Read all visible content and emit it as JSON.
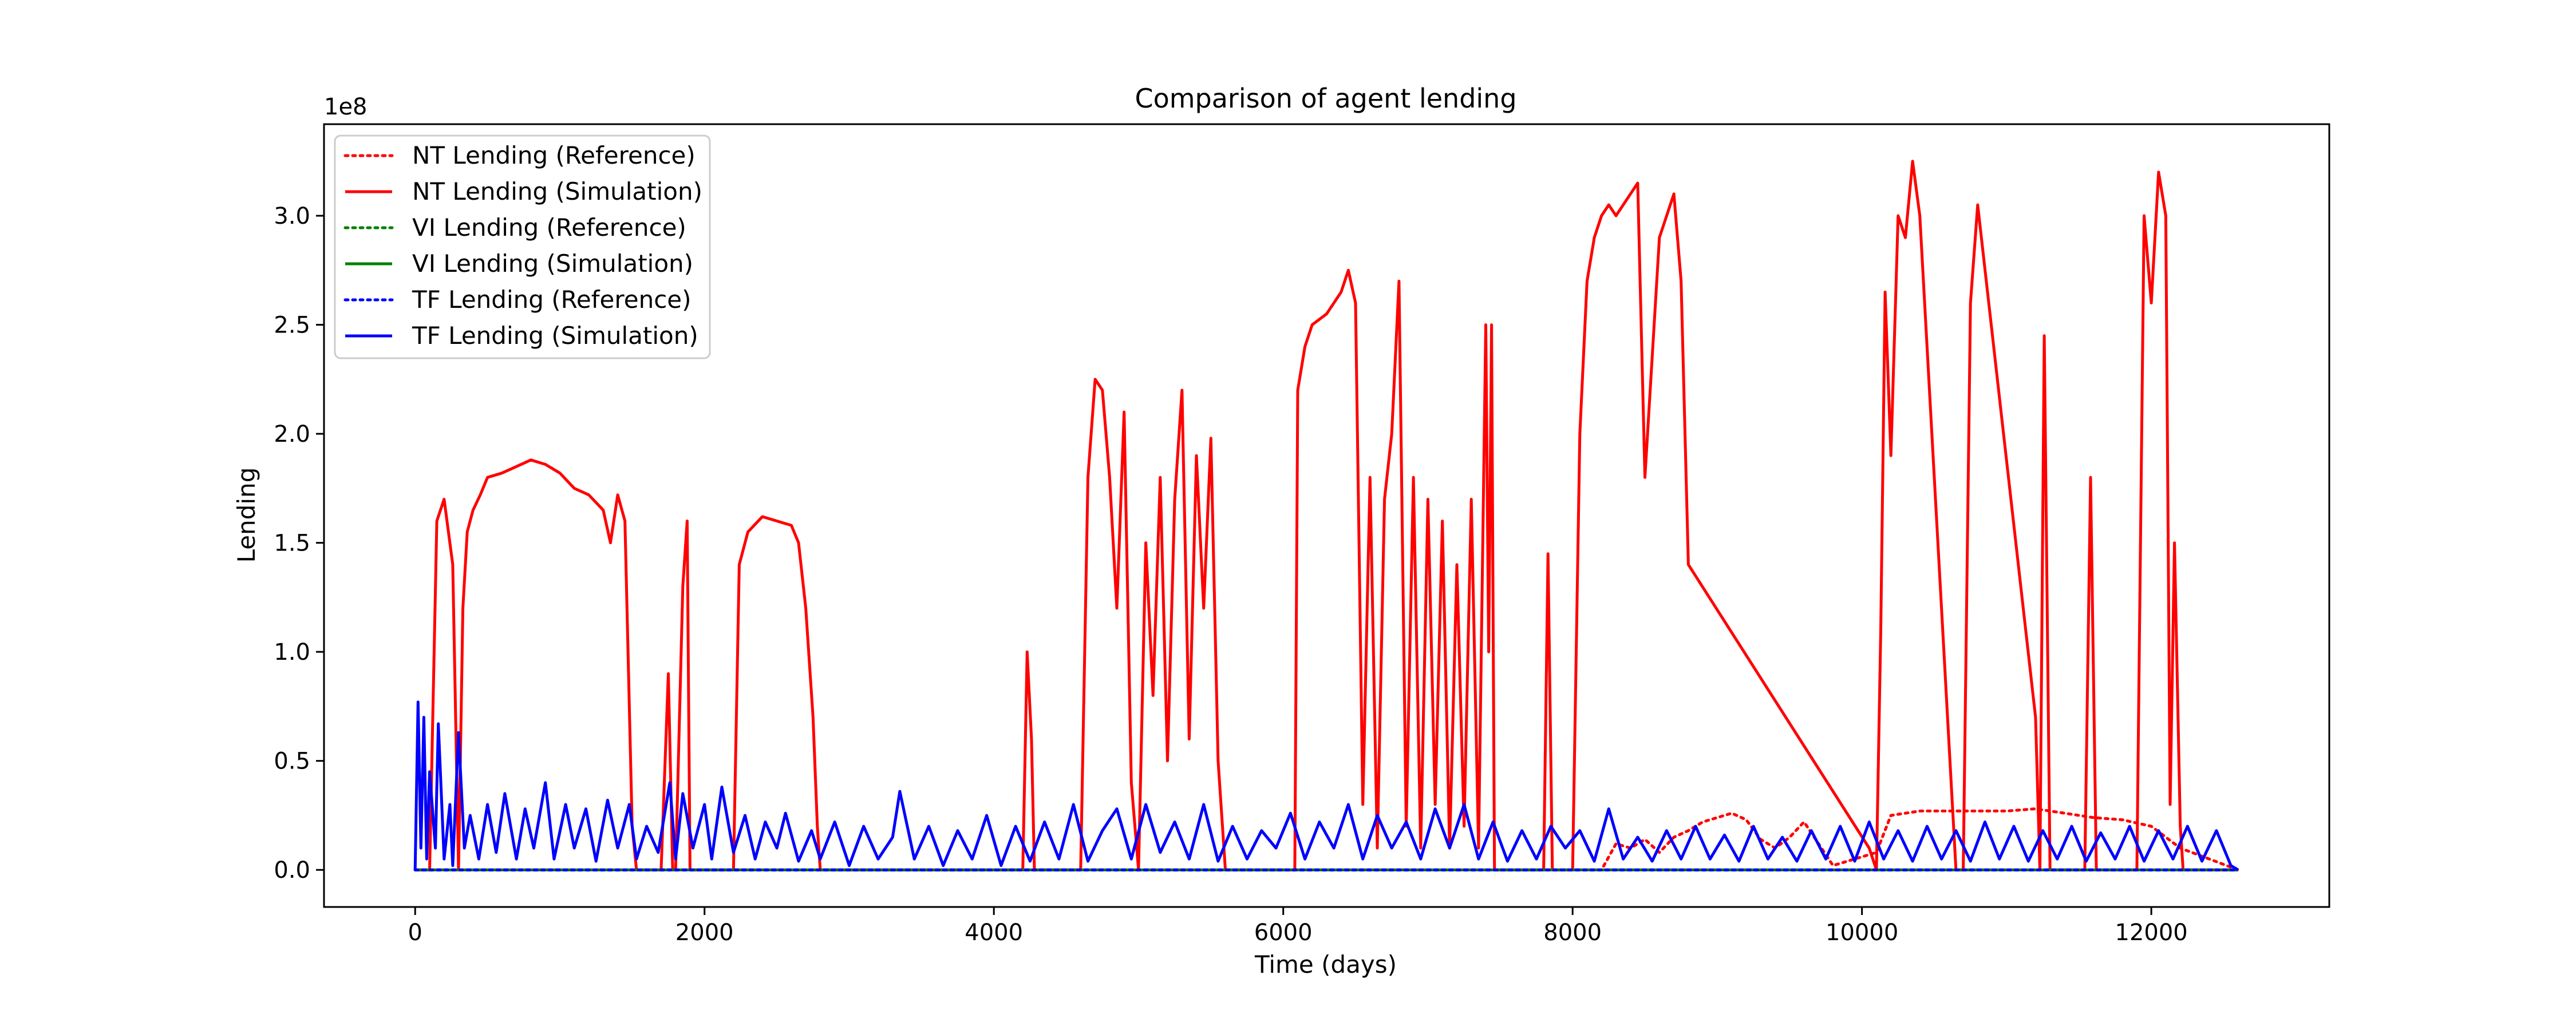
{
  "chart_data": {
    "type": "line",
    "title": "Comparison of agent lending",
    "xlabel": "Time (days)",
    "ylabel": "Lending",
    "y_offset_text": "1e8",
    "xlim": [
      -630,
      13230
    ],
    "ylim": [
      -0.17,
      3.42
    ],
    "y_scale": 100000000,
    "x_ticks": [
      0,
      2000,
      4000,
      6000,
      8000,
      10000,
      12000
    ],
    "x_tick_labels": [
      "0",
      "2000",
      "4000",
      "6000",
      "8000",
      "10000",
      "12000"
    ],
    "y_ticks": [
      0.0,
      0.5,
      1.0,
      1.5,
      2.0,
      2.5,
      3.0
    ],
    "y_tick_labels": [
      "0.0",
      "0.5",
      "1.0",
      "1.5",
      "2.0",
      "2.5",
      "3.0"
    ],
    "grid": false,
    "legend_position": "top-left",
    "colors": {
      "nt": "#ff0000",
      "vi": "#008000",
      "tf": "#0000ff"
    },
    "series": [
      {
        "name": "NT Lending (Reference)",
        "color": "#ff0000",
        "style": "dotted",
        "x": [
          0,
          8200,
          8300,
          8400,
          8500,
          8600,
          8700,
          8800,
          8900,
          9000,
          9100,
          9200,
          9300,
          9400,
          9500,
          9600,
          9700,
          9800,
          10100,
          10200,
          10400,
          10800,
          11000,
          11200,
          11400,
          11600,
          11800,
          12000,
          12200,
          12600
        ],
        "y": [
          0.0,
          0.0,
          0.12,
          0.1,
          0.14,
          0.08,
          0.15,
          0.18,
          0.22,
          0.24,
          0.26,
          0.23,
          0.14,
          0.1,
          0.15,
          0.22,
          0.12,
          0.02,
          0.08,
          0.25,
          0.27,
          0.27,
          0.27,
          0.28,
          0.26,
          0.24,
          0.23,
          0.2,
          0.1,
          0.0
        ]
      },
      {
        "name": "NT Lending (Simulation)",
        "color": "#ff0000",
        "style": "solid",
        "x": [
          0,
          100,
          150,
          200,
          260,
          300,
          330,
          360,
          400,
          450,
          500,
          600,
          700,
          800,
          900,
          1000,
          1100,
          1200,
          1300,
          1350,
          1400,
          1450,
          1500,
          1530,
          1600,
          1700,
          1750,
          1780,
          1800,
          1850,
          1880,
          1900,
          1950,
          2000,
          2200,
          2240,
          2300,
          2400,
          2500,
          2600,
          2650,
          2700,
          2750,
          2780,
          2800,
          4000,
          4200,
          4230,
          4260,
          4280,
          4300,
          4600,
          4650,
          4700,
          4750,
          4800,
          4850,
          4900,
          4950,
          5000,
          5050,
          5100,
          5150,
          5200,
          5250,
          5300,
          5350,
          5400,
          5450,
          5500,
          5550,
          5600,
          6000,
          6080,
          6100,
          6150,
          6200,
          6300,
          6400,
          6450,
          6500,
          6550,
          6600,
          6650,
          6700,
          6750,
          6800,
          6850,
          6900,
          6950,
          7000,
          7050,
          7100,
          7150,
          7200,
          7250,
          7300,
          7350,
          7400,
          7420,
          7440,
          7460,
          7800,
          7830,
          7860,
          8000,
          8050,
          8100,
          8150,
          8200,
          8250,
          8300,
          8400,
          8450,
          8500,
          8600,
          8700,
          8750,
          8800,
          10050,
          10100,
          10130,
          10160,
          10200,
          10250,
          10300,
          10350,
          10400,
          10650,
          10700,
          10750,
          10800,
          11200,
          11230,
          11260,
          11300,
          11500,
          11540,
          11580,
          11620,
          11900,
          11950,
          12000,
          12050,
          12100,
          12130,
          12160,
          12200,
          12220,
          12600
        ],
        "y": [
          0.0,
          0.0,
          1.6,
          1.7,
          1.4,
          0.0,
          1.2,
          1.55,
          1.65,
          1.72,
          1.8,
          1.82,
          1.85,
          1.88,
          1.86,
          1.82,
          1.75,
          1.72,
          1.65,
          1.5,
          1.72,
          1.6,
          0.2,
          0.0,
          0.0,
          0.0,
          0.9,
          0.0,
          0.0,
          1.3,
          1.6,
          0.0,
          0.0,
          0.0,
          0.0,
          1.4,
          1.55,
          1.62,
          1.6,
          1.58,
          1.5,
          1.2,
          0.7,
          0.2,
          0.0,
          0.0,
          0.0,
          1.0,
          0.6,
          0.0,
          0.0,
          0.0,
          1.8,
          2.25,
          2.2,
          1.8,
          1.2,
          2.1,
          0.4,
          0.0,
          1.5,
          0.8,
          1.8,
          0.5,
          1.7,
          2.2,
          0.6,
          1.9,
          1.2,
          1.98,
          0.5,
          0.0,
          0.0,
          0.0,
          2.2,
          2.4,
          2.5,
          2.55,
          2.65,
          2.75,
          2.6,
          0.3,
          1.8,
          0.1,
          1.7,
          2.0,
          2.7,
          0.2,
          1.8,
          0.1,
          1.7,
          0.3,
          1.6,
          0.1,
          1.4,
          0.2,
          1.7,
          0.1,
          2.5,
          1.0,
          2.5,
          0.0,
          0.0,
          1.45,
          0.0,
          0.0,
          2.0,
          2.7,
          2.9,
          3.0,
          3.05,
          3.0,
          3.1,
          3.15,
          1.8,
          2.9,
          3.1,
          2.7,
          1.4,
          0.1,
          0.0,
          1.1,
          2.65,
          1.9,
          3.0,
          2.9,
          3.25,
          3.0,
          0.0,
          0.0,
          2.6,
          3.05,
          0.7,
          0.0,
          2.45,
          0.0,
          0.0,
          0.0,
          1.8,
          0.0,
          0.0,
          3.0,
          2.6,
          3.2,
          3.0,
          0.3,
          1.5,
          0.2,
          0.0,
          0.0
        ]
      },
      {
        "name": "VI Lending (Reference)",
        "color": "#008000",
        "style": "dotted",
        "x": [
          0,
          12600
        ],
        "y": [
          0.0,
          0.0
        ]
      },
      {
        "name": "VI Lending (Simulation)",
        "color": "#008000",
        "style": "solid",
        "x": [
          0,
          12600
        ],
        "y": [
          0.0,
          0.0
        ]
      },
      {
        "name": "TF Lending (Reference)",
        "color": "#0000ff",
        "style": "dotted",
        "x": [
          0,
          12600
        ],
        "y": [
          0.0,
          0.0
        ]
      },
      {
        "name": "TF Lending (Simulation)",
        "color": "#0000ff",
        "style": "solid",
        "x": [
          0,
          20,
          40,
          60,
          80,
          100,
          140,
          160,
          200,
          240,
          260,
          300,
          340,
          380,
          440,
          500,
          560,
          620,
          700,
          760,
          820,
          900,
          960,
          1040,
          1100,
          1180,
          1250,
          1330,
          1400,
          1480,
          1530,
          1600,
          1680,
          1760,
          1800,
          1850,
          1920,
          2000,
          2050,
          2120,
          2200,
          2280,
          2350,
          2420,
          2500,
          2560,
          2650,
          2740,
          2800,
          2900,
          3000,
          3100,
          3200,
          3300,
          3350,
          3450,
          3550,
          3650,
          3750,
          3850,
          3950,
          4050,
          4150,
          4250,
          4350,
          4450,
          4550,
          4650,
          4750,
          4850,
          4950,
          5050,
          5150,
          5250,
          5350,
          5450,
          5550,
          5650,
          5750,
          5850,
          5950,
          6050,
          6150,
          6250,
          6350,
          6450,
          6550,
          6650,
          6750,
          6850,
          6950,
          7050,
          7150,
          7250,
          7350,
          7450,
          7550,
          7650,
          7750,
          7850,
          7950,
          8050,
          8150,
          8250,
          8350,
          8450,
          8550,
          8650,
          8750,
          8850,
          8950,
          9050,
          9150,
          9250,
          9350,
          9450,
          9550,
          9650,
          9750,
          9850,
          9950,
          10050,
          10150,
          10250,
          10350,
          10450,
          10550,
          10650,
          10750,
          10850,
          10950,
          11050,
          11150,
          11250,
          11350,
          11450,
          11550,
          11650,
          11750,
          11850,
          11950,
          12050,
          12150,
          12250,
          12350,
          12450,
          12550,
          12600
        ],
        "y": [
          0.0,
          0.77,
          0.1,
          0.7,
          0.05,
          0.45,
          0.1,
          0.67,
          0.05,
          0.3,
          0.02,
          0.63,
          0.1,
          0.25,
          0.05,
          0.3,
          0.08,
          0.35,
          0.05,
          0.28,
          0.1,
          0.4,
          0.05,
          0.3,
          0.1,
          0.28,
          0.04,
          0.32,
          0.1,
          0.3,
          0.05,
          0.2,
          0.08,
          0.4,
          0.05,
          0.35,
          0.1,
          0.3,
          0.05,
          0.38,
          0.08,
          0.25,
          0.05,
          0.22,
          0.1,
          0.26,
          0.04,
          0.18,
          0.05,
          0.22,
          0.02,
          0.2,
          0.05,
          0.15,
          0.36,
          0.05,
          0.2,
          0.02,
          0.18,
          0.05,
          0.25,
          0.02,
          0.2,
          0.04,
          0.22,
          0.05,
          0.3,
          0.04,
          0.18,
          0.28,
          0.05,
          0.3,
          0.08,
          0.22,
          0.05,
          0.3,
          0.04,
          0.2,
          0.05,
          0.18,
          0.1,
          0.26,
          0.05,
          0.22,
          0.1,
          0.3,
          0.05,
          0.25,
          0.1,
          0.22,
          0.05,
          0.28,
          0.1,
          0.3,
          0.05,
          0.22,
          0.04,
          0.18,
          0.05,
          0.2,
          0.1,
          0.18,
          0.04,
          0.28,
          0.05,
          0.15,
          0.04,
          0.18,
          0.05,
          0.2,
          0.05,
          0.16,
          0.04,
          0.2,
          0.05,
          0.15,
          0.04,
          0.18,
          0.05,
          0.2,
          0.04,
          0.22,
          0.05,
          0.18,
          0.04,
          0.2,
          0.05,
          0.18,
          0.04,
          0.22,
          0.05,
          0.2,
          0.04,
          0.18,
          0.05,
          0.2,
          0.04,
          0.17,
          0.05,
          0.2,
          0.04,
          0.18,
          0.05,
          0.2,
          0.04,
          0.18,
          0.02,
          0.0
        ]
      }
    ]
  }
}
